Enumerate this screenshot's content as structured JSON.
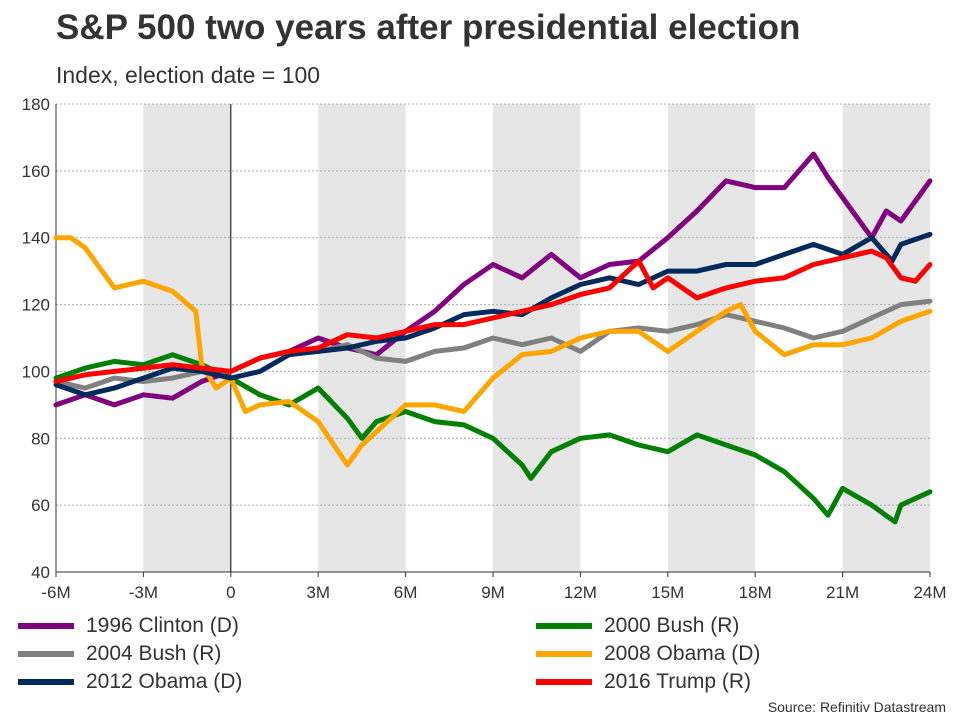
{
  "title": "S&P 500 two years after presidential election",
  "subtitle": "Index, election date = 100",
  "source": "Source: Refinitiv Datastream",
  "chart_data": {
    "type": "line",
    "title": "S&P 500 two years after presidential election",
    "ylabel": "Index, election date = 100",
    "xlim": [
      -6,
      24
    ],
    "ylim": [
      40,
      180
    ],
    "xticks": [
      -6,
      -3,
      0,
      3,
      6,
      9,
      12,
      15,
      18,
      21,
      24
    ],
    "xtick_labels": [
      "-6M",
      "-3M",
      "0",
      "3M",
      "6M",
      "9M",
      "12M",
      "15M",
      "18M",
      "21M",
      "24M"
    ],
    "yticks": [
      40,
      60,
      80,
      100,
      120,
      140,
      160,
      180
    ],
    "shaded_bands": [
      [
        -3,
        0
      ],
      [
        3,
        6
      ],
      [
        9,
        12
      ],
      [
        15,
        18
      ],
      [
        21,
        24
      ]
    ],
    "grid": true,
    "legend_placement": "bottom",
    "series": [
      {
        "name": "1996 Clinton (D)",
        "color": "#800080",
        "x": [
          -6,
          -5,
          -4,
          -3,
          -2,
          -1,
          0,
          1,
          2,
          3,
          4,
          5,
          6,
          7,
          8,
          9,
          10,
          11,
          12,
          13,
          14,
          15,
          16,
          17,
          18,
          19,
          20,
          20.5,
          21,
          22,
          22.5,
          23,
          24
        ],
        "y": [
          90,
          93,
          90,
          93,
          92,
          97,
          100,
          104,
          106,
          110,
          107,
          105,
          112,
          118,
          126,
          132,
          128,
          135,
          128,
          132,
          133,
          140,
          148,
          157,
          155,
          155,
          165,
          158,
          152,
          140,
          148,
          145,
          157
        ]
      },
      {
        "name": "2000 Bush (R)",
        "color": "#008000",
        "x": [
          -6,
          -5,
          -4,
          -3,
          -2,
          -1,
          0,
          1,
          2,
          3,
          4,
          4.5,
          5,
          6,
          7,
          8,
          9,
          10,
          10.3,
          11,
          12,
          13,
          14,
          15,
          16,
          17,
          18,
          19,
          20,
          20.5,
          21,
          22,
          22.8,
          23,
          24
        ],
        "y": [
          98,
          101,
          103,
          102,
          105,
          102,
          98,
          93,
          90,
          95,
          86,
          80,
          85,
          88,
          85,
          84,
          80,
          72,
          68,
          76,
          80,
          81,
          78,
          76,
          81,
          78,
          75,
          70,
          62,
          57,
          65,
          60,
          55,
          60,
          64
        ]
      },
      {
        "name": "2004 Bush (R)",
        "color": "#808080",
        "x": [
          -6,
          -5,
          -4,
          -3,
          -2,
          -1,
          0,
          1,
          2,
          3,
          4,
          5,
          6,
          7,
          8,
          9,
          10,
          11,
          12,
          13,
          14,
          15,
          16,
          17,
          18,
          19,
          20,
          21,
          22,
          23,
          24
        ],
        "y": [
          97,
          95,
          98,
          97,
          98,
          100,
          100,
          104,
          106,
          106,
          108,
          104,
          103,
          106,
          107,
          110,
          108,
          110,
          106,
          112,
          113,
          112,
          114,
          117,
          115,
          113,
          110,
          112,
          116,
          120,
          121
        ]
      },
      {
        "name": "2008 Obama (D)",
        "color": "#FFA500",
        "x": [
          -6,
          -5.5,
          -5,
          -4,
          -3,
          -2,
          -1.2,
          -1,
          -0.5,
          0,
          0.5,
          1,
          2,
          3,
          4,
          4.5,
          5,
          6,
          7,
          8,
          9,
          10,
          11,
          12,
          13,
          14,
          15,
          16,
          17,
          17.5,
          18,
          19,
          20,
          21,
          22,
          23,
          24
        ],
        "y": [
          140,
          140,
          137,
          125,
          127,
          124,
          118,
          102,
          95,
          98,
          88,
          90,
          91,
          85,
          72,
          78,
          82,
          90,
          90,
          88,
          98,
          105,
          106,
          110,
          112,
          112,
          106,
          112,
          118,
          120,
          112,
          105,
          108,
          108,
          110,
          115,
          118
        ]
      },
      {
        "name": "2012 Obama (D)",
        "color": "#002A5C",
        "x": [
          -6,
          -5,
          -4,
          -3,
          -2,
          -1,
          0,
          1,
          2,
          3,
          4,
          5,
          6,
          7,
          8,
          9,
          10,
          11,
          12,
          13,
          14,
          15,
          16,
          17,
          18,
          19,
          20,
          21,
          22,
          22.7,
          23,
          24
        ],
        "y": [
          96,
          93,
          95,
          98,
          101,
          100,
          98,
          100,
          105,
          106,
          107,
          109,
          110,
          113,
          117,
          118,
          117,
          122,
          126,
          128,
          126,
          130,
          130,
          132,
          132,
          135,
          138,
          135,
          140,
          133,
          138,
          141
        ]
      },
      {
        "name": "2016 Trump (R)",
        "color": "#FF0000",
        "x": [
          -6,
          -5,
          -4,
          -3,
          -2,
          -1,
          0,
          1,
          2,
          3,
          4,
          5,
          6,
          7,
          8,
          9,
          10,
          11,
          12,
          13,
          14,
          14.5,
          15,
          16,
          17,
          18,
          19,
          20,
          21,
          22,
          22.5,
          23,
          23.5,
          24
        ],
        "y": [
          97,
          99,
          100,
          101,
          102,
          101,
          100,
          104,
          106,
          107,
          111,
          110,
          112,
          114,
          114,
          116,
          118,
          120,
          123,
          125,
          133,
          125,
          128,
          122,
          125,
          127,
          128,
          132,
          134,
          136,
          134,
          128,
          127,
          132
        ]
      }
    ]
  }
}
